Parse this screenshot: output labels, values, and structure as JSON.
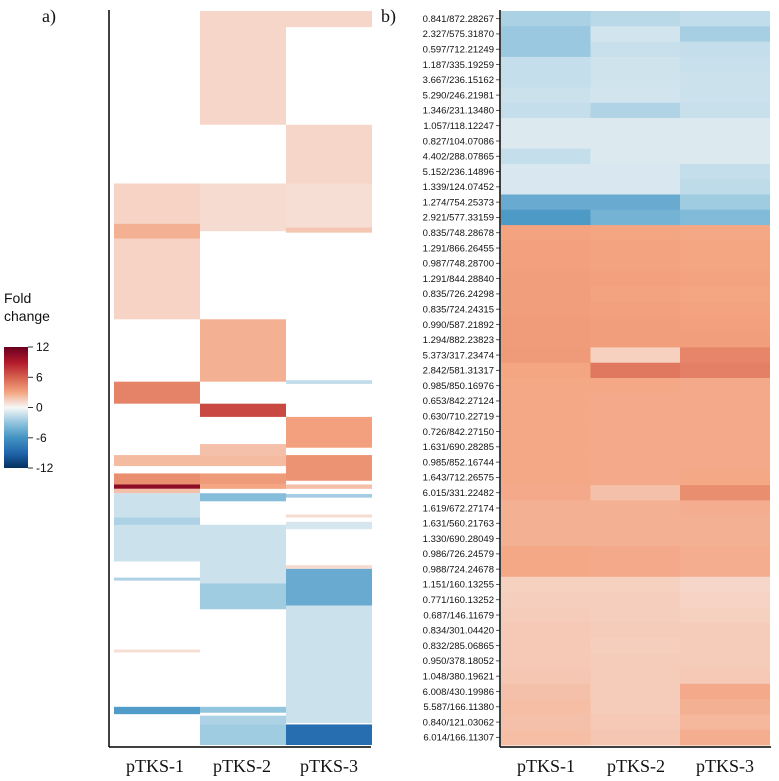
{
  "chart_data": [
    {
      "type": "heatmap",
      "panel_label": "a)",
      "columns": [
        "pTKS-1",
        "pTKS-2",
        "pTKS-3"
      ],
      "legend": {
        "title": "Fold change",
        "title_lines": [
          "Fold",
          "change"
        ],
        "ticks": [
          12,
          6,
          0,
          -6,
          -12
        ],
        "range": [
          -12,
          12
        ]
      },
      "blocks": [
        {
          "col": 2,
          "from": 0,
          "to": 2.2,
          "value": 1.2
        },
        {
          "col": 1,
          "from": 0,
          "to": 15.5,
          "value": 1.2
        },
        {
          "col": 2,
          "from": 15.5,
          "to": 23.5,
          "value": 1.2
        },
        {
          "col": 0,
          "from": 23.5,
          "to": 42,
          "value": 1.3
        },
        {
          "col": 1,
          "from": 23.5,
          "to": 30,
          "value": 1.0
        },
        {
          "col": 2,
          "from": 23.5,
          "to": 30,
          "value": 0.9
        },
        {
          "col": 0,
          "from": 29,
          "to": 31,
          "value": 2.6
        },
        {
          "col": 2,
          "from": 29.5,
          "to": 30.2,
          "value": 1.8
        },
        {
          "col": 1,
          "from": 42,
          "to": 50.5,
          "value": 2.6
        },
        {
          "col": 2,
          "from": 50.3,
          "to": 50.8,
          "value": -1.6
        },
        {
          "col": 0,
          "from": 50.5,
          "to": 53.5,
          "value": 4.5
        },
        {
          "col": 1,
          "from": 53.5,
          "to": 55.3,
          "value": 7.0
        },
        {
          "col": 2,
          "from": 55.3,
          "to": 59.5,
          "value": 3.2
        },
        {
          "col": 1,
          "from": 59,
          "to": 60.5,
          "value": 2.0
        },
        {
          "col": 0,
          "from": 60.5,
          "to": 62,
          "value": 2.2
        },
        {
          "col": 1,
          "from": 60.5,
          "to": 62,
          "value": 2.2
        },
        {
          "col": 2,
          "from": 60.5,
          "to": 64,
          "value": 3.8
        },
        {
          "col": 0,
          "from": 63,
          "to": 64.5,
          "value": 4.0
        },
        {
          "col": 1,
          "from": 63,
          "to": 64.5,
          "value": 3.5
        },
        {
          "col": 0,
          "from": 64.5,
          "to": 65.1,
          "value": 10.5
        },
        {
          "col": 1,
          "from": 64.5,
          "to": 65.1,
          "value": 3.0
        },
        {
          "col": 2,
          "from": 64.5,
          "to": 65.1,
          "value": 2.0
        },
        {
          "col": 0,
          "from": 65.1,
          "to": 65.7,
          "value": 2.0
        },
        {
          "col": 0,
          "from": 65.7,
          "to": 75,
          "value": -1.3
        },
        {
          "col": 1,
          "from": 65.7,
          "to": 66.8,
          "value": -3.5
        },
        {
          "col": 2,
          "from": 65.8,
          "to": 66.3,
          "value": -2.5
        },
        {
          "col": 0,
          "from": 69,
          "to": 70,
          "value": -2.2
        },
        {
          "col": 2,
          "from": 68.6,
          "to": 69,
          "value": 1.0
        },
        {
          "col": 2,
          "from": 69.6,
          "to": 70.6,
          "value": -1.0
        },
        {
          "col": 1,
          "from": 70,
          "to": 81.5,
          "value": -1.3
        },
        {
          "col": 2,
          "from": 75.5,
          "to": 76,
          "value": 1.0
        },
        {
          "col": 2,
          "from": 76,
          "to": 81,
          "value": -4.6
        },
        {
          "col": 0,
          "from": 77.2,
          "to": 77.6,
          "value": -2.2
        },
        {
          "col": 1,
          "from": 78,
          "to": 81.5,
          "value": -2.6
        },
        {
          "col": 2,
          "from": 81,
          "to": 97,
          "value": -1.3
        },
        {
          "col": 0,
          "from": 87,
          "to": 87.4,
          "value": 0.9
        },
        {
          "col": 0,
          "from": 94.8,
          "to": 95.8,
          "value": -5.5
        },
        {
          "col": 1,
          "from": 94.8,
          "to": 95.6,
          "value": -3.0
        },
        {
          "col": 1,
          "from": 96,
          "to": 97.2,
          "value": -2.2
        },
        {
          "col": 1,
          "from": 97.2,
          "to": 100,
          "value": -2.6
        },
        {
          "col": 2,
          "from": 97.2,
          "to": 100,
          "value": -8.5
        }
      ]
    },
    {
      "type": "heatmap",
      "panel_label": "b)",
      "columns": [
        "pTKS-1",
        "pTKS-2",
        "pTKS-3"
      ],
      "rows": [
        "0.841/872.28267",
        "2.327/575.31870",
        "0.597/712.21249",
        "1.187/335.19259",
        "3.667/236.15162",
        "5.290/246.21981",
        "1.346/231.13480",
        "1.057/118.12247",
        "0.827/104.07086",
        "4.402/288.07865",
        "5.152/236.14896",
        "1.339/124.07452",
        "1.274/754.25373",
        "2.921/577.33159",
        "0.835/748.28678",
        "1.291/866.26455",
        "0.987/748.28700",
        "1.291/844.28840",
        "0.835/726.24298",
        "0.835/724.24315",
        "0.990/587.21892",
        "1.294/882.23823",
        "5.373/317.23474",
        "2.842/581.31317",
        "0.985/850.16976",
        "0.653/842.27124",
        "0.630/710.22719",
        "0.726/842.27150",
        "1.631/690.28285",
        "0.985/852.16744",
        "1.643/712.26575",
        "6.015/331.22482",
        "1.619/672.27174",
        "1.631/560.21763",
        "1.330/690.28049",
        "0.986/726.24579",
        "0.988/724.24678",
        "1.151/160.13255",
        "0.771/160.13252",
        "0.687/146.11679",
        "0.834/301.04420",
        "0.832/285.06865",
        "0.950/378.18052",
        "1.048/380.19621",
        "6.008/430.19986",
        "5.587/166.11380",
        "0.840/121.03062",
        "6.014/166.11307"
      ],
      "values": [
        [
          -2.3,
          -1.8,
          -1.6
        ],
        [
          -2.8,
          -1.1,
          -2.4
        ],
        [
          -2.8,
          -1.4,
          -1.5
        ],
        [
          -1.5,
          -1.2,
          -1.4
        ],
        [
          -1.5,
          -1.2,
          -1.3
        ],
        [
          -1.3,
          -1.1,
          -1.3
        ],
        [
          -1.5,
          -2.1,
          -1.4
        ],
        [
          -0.8,
          -0.8,
          -0.8
        ],
        [
          -0.8,
          -0.8,
          -0.8
        ],
        [
          -1.5,
          -0.8,
          -0.8
        ],
        [
          -0.9,
          -0.9,
          -1.5
        ],
        [
          -0.9,
          -0.9,
          -1.7
        ],
        [
          -4.6,
          -4.6,
          -2.6
        ],
        [
          -5.6,
          -4.1,
          -3.6
        ],
        [
          3.1,
          3.0,
          2.9
        ],
        [
          3.2,
          3.1,
          3.0
        ],
        [
          3.2,
          3.1,
          3.0
        ],
        [
          3.3,
          3.2,
          3.1
        ],
        [
          3.3,
          3.1,
          3.0
        ],
        [
          3.3,
          3.2,
          3.1
        ],
        [
          3.4,
          3.3,
          3.2
        ],
        [
          3.4,
          3.3,
          3.3
        ],
        [
          3.5,
          1.4,
          4.4
        ],
        [
          3.0,
          5.0,
          4.6
        ],
        [
          2.9,
          2.9,
          2.8
        ],
        [
          2.9,
          2.8,
          2.8
        ],
        [
          2.9,
          2.8,
          2.8
        ],
        [
          2.9,
          2.8,
          2.8
        ],
        [
          2.9,
          2.8,
          2.8
        ],
        [
          2.9,
          2.8,
          2.8
        ],
        [
          2.9,
          2.8,
          2.9
        ],
        [
          2.8,
          2.0,
          4.0
        ],
        [
          2.6,
          2.6,
          2.7
        ],
        [
          2.6,
          2.6,
          2.6
        ],
        [
          2.6,
          2.6,
          2.6
        ],
        [
          2.9,
          2.8,
          2.7
        ],
        [
          2.9,
          2.8,
          2.7
        ],
        [
          1.4,
          1.4,
          1.2
        ],
        [
          1.5,
          1.5,
          1.3
        ],
        [
          1.6,
          1.5,
          1.4
        ],
        [
          1.7,
          1.6,
          1.6
        ],
        [
          1.7,
          1.5,
          1.6
        ],
        [
          1.7,
          1.6,
          1.6
        ],
        [
          1.8,
          1.6,
          1.7
        ],
        [
          2.0,
          1.6,
          2.8
        ],
        [
          2.1,
          1.6,
          2.6
        ],
        [
          2.0,
          1.7,
          2.3
        ],
        [
          2.1,
          1.8,
          2.7
        ]
      ]
    }
  ]
}
